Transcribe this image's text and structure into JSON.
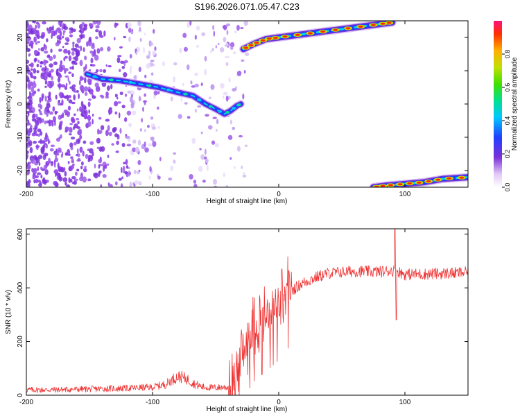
{
  "title": "S196.2026.071.05.47.C23",
  "colors": {
    "signal": "#ee3333",
    "speckle": "#7a30d8",
    "frame": "#000000"
  },
  "chart_data": [
    {
      "type": "heatmap",
      "name": "spectrogram",
      "xlabel": "Height of straight line (km)",
      "ylabel": "Frequency (Hz)",
      "xlim": [
        -200,
        150
      ],
      "ylim": [
        -25,
        25
      ],
      "xticks": [
        -200,
        -100,
        0,
        100
      ],
      "yticks": [
        -20,
        -10,
        0,
        10,
        20
      ],
      "colorbar": {
        "label": "Normalized spectral amplitude",
        "range": [
          0,
          1
        ],
        "ticks": [
          0.0,
          0.2,
          0.4,
          0.6,
          0.8
        ]
      },
      "tracks": [
        {
          "name": "descending-track",
          "points": [
            [
              -152,
              9
            ],
            [
              -140,
              7.5
            ],
            [
              -125,
              7
            ],
            [
              -110,
              6
            ],
            [
              -95,
              5
            ],
            [
              -80,
              3.5
            ],
            [
              -68,
              2.5
            ],
            [
              -58,
              0
            ],
            [
              -50,
              -1.5
            ],
            [
              -43,
              -3
            ],
            [
              -38,
              -2
            ],
            [
              -33,
              -0.5
            ],
            [
              -30,
              0
            ]
          ]
        },
        {
          "name": "upper-track",
          "points": [
            [
              -28,
              16.5
            ],
            [
              -20,
              18
            ],
            [
              -10,
              19.5
            ],
            [
              0,
              20
            ],
            [
              20,
              21
            ],
            [
              40,
              22
            ],
            [
              60,
              23
            ],
            [
              80,
              24
            ],
            [
              90,
              24.5
            ]
          ]
        },
        {
          "name": "lower-track",
          "points": [
            [
              75,
              -25
            ],
            [
              85,
              -24.5
            ],
            [
              100,
              -24
            ],
            [
              115,
              -23.5
            ],
            [
              130,
              -22.5
            ],
            [
              150,
              -22
            ]
          ]
        }
      ]
    },
    {
      "type": "line",
      "name": "snr",
      "xlabel": "Height of straight line (km)",
      "ylabel": "SNR (10 * v/v)",
      "xlim": [
        -200,
        150
      ],
      "ylim": [
        0,
        620
      ],
      "xticks": [
        -200,
        -100,
        0,
        100
      ],
      "yticks": [
        0,
        200,
        400,
        600
      ],
      "series": [
        {
          "name": "SNR",
          "color": "#ee3333",
          "points": [
            [
              -200,
              20
            ],
            [
              -180,
              20
            ],
            [
              -160,
              22
            ],
            [
              -140,
              24
            ],
            [
              -120,
              26
            ],
            [
              -100,
              30
            ],
            [
              -90,
              40
            ],
            [
              -82,
              65
            ],
            [
              -78,
              70
            ],
            [
              -72,
              58
            ],
            [
              -66,
              40
            ],
            [
              -60,
              30
            ],
            [
              -52,
              28
            ],
            [
              -40,
              30
            ],
            [
              -35,
              60
            ],
            [
              -30,
              130
            ],
            [
              -25,
              210
            ],
            [
              -20,
              250
            ],
            [
              -15,
              270
            ],
            [
              -10,
              290
            ],
            [
              -5,
              310
            ],
            [
              0,
              330
            ],
            [
              5,
              360
            ],
            [
              10,
              390
            ],
            [
              15,
              405
            ],
            [
              20,
              420
            ],
            [
              30,
              440
            ],
            [
              40,
              455
            ],
            [
              60,
              462
            ],
            [
              80,
              460
            ],
            [
              92,
              465
            ],
            [
              100,
              450
            ],
            [
              120,
              452
            ],
            [
              140,
              455
            ],
            [
              150,
              458
            ]
          ]
        }
      ]
    }
  ]
}
